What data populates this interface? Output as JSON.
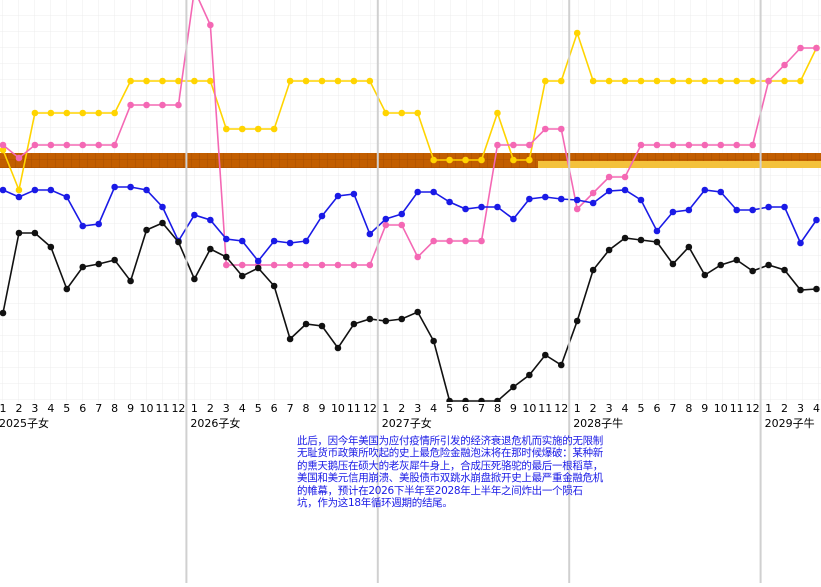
{
  "chart_data": {
    "type": "line",
    "categories": [
      "1",
      "2",
      "3",
      "4",
      "5",
      "6",
      "7",
      "8",
      "9",
      "10",
      "11",
      "12",
      "1",
      "2",
      "3",
      "4",
      "5",
      "6",
      "7",
      "8",
      "9",
      "10",
      "11",
      "12",
      "1",
      "2",
      "3",
      "4",
      "5",
      "6",
      "7",
      "8",
      "9",
      "10",
      "11",
      "12",
      "1",
      "2",
      "3",
      "4",
      "5",
      "6",
      "7",
      "8",
      "9",
      "10",
      "11",
      "12",
      "1",
      "2",
      "3",
      "4"
    ],
    "year_labels": [
      "2025子女",
      "2026子女",
      "2027子女",
      "2028子牛",
      "2029子牛"
    ],
    "ylim": [
      0,
      400
    ],
    "series": [
      {
        "color": "#ffd400",
        "values": [
          250,
          210,
          287,
          287,
          287,
          287,
          287,
          287,
          319,
          319,
          319,
          319,
          319,
          319,
          271,
          271,
          271,
          271,
          319,
          319,
          319,
          319,
          319,
          319,
          287,
          287,
          287,
          240,
          240,
          240,
          240,
          287,
          240,
          240,
          319,
          319,
          367,
          319,
          319,
          319,
          319,
          319,
          319,
          319,
          319,
          319,
          319,
          319,
          319,
          319,
          319,
          352
        ]
      },
      {
        "color": "#f468b4",
        "values": [
          255,
          242,
          255,
          255,
          255,
          255,
          255,
          255,
          295,
          295,
          295,
          295,
          410,
          375,
          135,
          135,
          135,
          135,
          135,
          135,
          135,
          135,
          135,
          135,
          175,
          175,
          143,
          159,
          159,
          159,
          159,
          255,
          255,
          255,
          271,
          271,
          191,
          207,
          223,
          223,
          255,
          255,
          255,
          255,
          255,
          255,
          255,
          255,
          319,
          335,
          352,
          352
        ]
      },
      {
        "color": "#1a1ae6",
        "values": [
          210,
          203,
          210,
          210,
          203,
          174,
          176,
          213,
          213,
          210,
          193,
          159,
          185,
          180,
          161,
          159,
          139,
          159,
          157,
          159,
          184,
          204,
          206,
          166,
          181,
          186,
          208,
          208,
          198,
          191,
          193,
          193,
          181,
          201,
          203,
          201,
          200,
          197,
          209,
          210,
          200,
          169,
          188,
          190,
          210,
          208,
          190,
          190,
          193,
          193,
          157,
          180
        ]
      },
      {
        "color": "#111111",
        "values": [
          87,
          167,
          167,
          153,
          111,
          133,
          136,
          140,
          119,
          170,
          177,
          158,
          121,
          151,
          143,
          124,
          132,
          114,
          61,
          76,
          74,
          52,
          76,
          81,
          79,
          81,
          88,
          59,
          -1,
          -1,
          -1,
          -1,
          13,
          25,
          45,
          35,
          79,
          130,
          150,
          162,
          160,
          158,
          136,
          153,
          125,
          135,
          140,
          129,
          135,
          130,
          110,
          111
        ]
      }
    ],
    "note": "此后，因今年美国为应付疫情所引发的经济衰退危机而实施的无限制无耻货币政策所吹起的史上最危险金融泡沫将在那时候爆破：某种新的熏天鹅压在硕大的老灰犀牛身上，合成压死骆驼的最后一根稻草，美国和美元信用崩溃、美股债市双跳水崩盘掀开史上最严重金融危机的帷幕，预计在2026下半年至2028年上半年之间炸出一个陨石坑，作为这18年循环週期的结尾。"
  }
}
